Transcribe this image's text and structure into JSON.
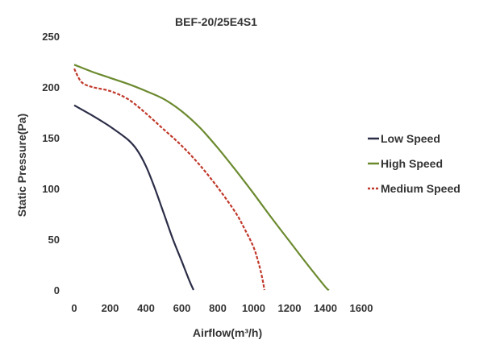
{
  "chart_data": {
    "type": "line",
    "title": "BEF-20/25E4S1",
    "xlabel": "Airflow(m³/h)",
    "ylabel": "Static Pressure(Pa)",
    "xlim": [
      0,
      1600
    ],
    "ylim": [
      0,
      250
    ],
    "xticks": [
      0,
      200,
      400,
      600,
      800,
      1000,
      1200,
      1400,
      1600
    ],
    "yticks": [
      0,
      50,
      100,
      150,
      200,
      250
    ],
    "grid": false,
    "legend_position": "right",
    "series": [
      {
        "name": "Low Speed",
        "color": "#2b2d47",
        "dash": "solid",
        "points": [
          [
            0,
            182
          ],
          [
            100,
            172
          ],
          [
            200,
            161
          ],
          [
            300,
            148
          ],
          [
            350,
            138
          ],
          [
            400,
            122
          ],
          [
            450,
            100
          ],
          [
            500,
            75
          ],
          [
            550,
            50
          ],
          [
            600,
            28
          ],
          [
            640,
            10
          ],
          [
            665,
            0
          ]
        ]
      },
      {
        "name": "High Speed",
        "color": "#6b8a2e",
        "dash": "solid",
        "points": [
          [
            0,
            222
          ],
          [
            100,
            215
          ],
          [
            200,
            209
          ],
          [
            300,
            203
          ],
          [
            400,
            196
          ],
          [
            500,
            188
          ],
          [
            600,
            176
          ],
          [
            700,
            160
          ],
          [
            800,
            140
          ],
          [
            900,
            118
          ],
          [
            1000,
            95
          ],
          [
            1100,
            71
          ],
          [
            1200,
            48
          ],
          [
            1300,
            25
          ],
          [
            1400,
            3
          ],
          [
            1420,
            0
          ]
        ]
      },
      {
        "name": "Medium Speed",
        "color": "#c0392b",
        "dash": "dashed",
        "points": [
          [
            0,
            218
          ],
          [
            40,
            205
          ],
          [
            100,
            200
          ],
          [
            200,
            196
          ],
          [
            300,
            188
          ],
          [
            400,
            174
          ],
          [
            500,
            158
          ],
          [
            600,
            142
          ],
          [
            700,
            123
          ],
          [
            800,
            101
          ],
          [
            900,
            76
          ],
          [
            950,
            60
          ],
          [
            1000,
            42
          ],
          [
            1030,
            25
          ],
          [
            1050,
            10
          ],
          [
            1060,
            0
          ]
        ]
      }
    ]
  }
}
